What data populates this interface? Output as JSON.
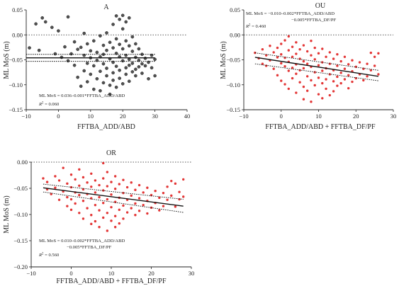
{
  "chart_data": [
    {
      "type": "scatter",
      "title": "A",
      "xlabel": "FFTBA_ADD/ABD",
      "ylabel": "ML MoS (m)",
      "xlim": [
        -10,
        40
      ],
      "ylim": [
        -0.15,
        0.05
      ],
      "xticks": [
        "−10",
        "0",
        "10",
        "20",
        "30",
        "40"
      ],
      "yticks": [
        "0.05",
        "0.00",
        "−0.05",
        "−0.10",
        "−0.15"
      ],
      "equation": [
        "ML MoS = 0.036–0.001*FFTBA_ADD/ABD"
      ],
      "r2_label": "R",
      "r2_value": "= 0.060",
      "point_color": "#333333",
      "reference_line_y": 0.0,
      "fit_line": {
        "x": [
          -10,
          30
        ],
        "y": [
          -0.046,
          -0.046
        ]
      },
      "ci_lines": [
        {
          "x": [
            -10,
            30
          ],
          "y": [
            -0.039,
            -0.039
          ]
        },
        {
          "x": [
            -10,
            30
          ],
          "y": [
            -0.053,
            -0.053
          ]
        }
      ],
      "points": [
        [
          -9,
          -0.026
        ],
        [
          -7,
          0.022
        ],
        [
          -6,
          -0.031
        ],
        [
          -5,
          0.034
        ],
        [
          -4,
          0.026
        ],
        [
          -2,
          0.015
        ],
        [
          -1,
          -0.038
        ],
        [
          0,
          0.008
        ],
        [
          1,
          -0.045
        ],
        [
          2,
          -0.024
        ],
        [
          3,
          -0.052
        ],
        [
          3,
          0.036
        ],
        [
          4,
          -0.038
        ],
        [
          5,
          -0.014
        ],
        [
          5,
          -0.061
        ],
        [
          6,
          -0.029
        ],
        [
          6,
          -0.085
        ],
        [
          7,
          -0.025
        ],
        [
          7,
          -0.103
        ],
        [
          8,
          -0.041
        ],
        [
          8,
          0.003
        ],
        [
          8,
          -0.072
        ],
        [
          9,
          -0.018
        ],
        [
          9,
          -0.057
        ],
        [
          9,
          -0.094
        ],
        [
          10,
          -0.032
        ],
        [
          10,
          -0.046
        ],
        [
          10,
          -0.079
        ],
        [
          11,
          -0.012
        ],
        [
          11,
          -0.062
        ],
        [
          11,
          -0.109
        ],
        [
          12,
          -0.035
        ],
        [
          12,
          -0.051
        ],
        [
          12,
          -0.088
        ],
        [
          13,
          -0.002
        ],
        [
          13,
          -0.044
        ],
        [
          13,
          -0.073
        ],
        [
          13,
          -0.112
        ],
        [
          14,
          -0.021
        ],
        [
          14,
          -0.039
        ],
        [
          14,
          -0.058
        ],
        [
          14,
          -0.096
        ],
        [
          15,
          0.004
        ],
        [
          15,
          -0.031
        ],
        [
          15,
          -0.067
        ],
        [
          15,
          -0.082
        ],
        [
          16,
          -0.015
        ],
        [
          16,
          -0.048
        ],
        [
          16,
          -0.101
        ],
        [
          16,
          -0.119
        ],
        [
          17,
          0.021
        ],
        [
          17,
          -0.026
        ],
        [
          17,
          -0.055
        ],
        [
          17,
          -0.076
        ],
        [
          17,
          -0.091
        ],
        [
          18,
          0.038
        ],
        [
          18,
          -0.008
        ],
        [
          18,
          -0.037
        ],
        [
          18,
          -0.063
        ],
        [
          18,
          -0.105
        ],
        [
          19,
          0.031
        ],
        [
          19,
          -0.019
        ],
        [
          19,
          -0.044
        ],
        [
          19,
          -0.071
        ],
        [
          19,
          -0.087
        ],
        [
          20,
          0.039
        ],
        [
          20,
          0.012
        ],
        [
          20,
          -0.028
        ],
        [
          20,
          -0.052
        ],
        [
          20,
          -0.098
        ],
        [
          21,
          0.026
        ],
        [
          21,
          -0.012
        ],
        [
          21,
          -0.041
        ],
        [
          21,
          -0.066
        ],
        [
          21,
          -0.079
        ],
        [
          22,
          0.034
        ],
        [
          22,
          -0.022
        ],
        [
          22,
          -0.049
        ],
        [
          22,
          -0.061
        ],
        [
          22,
          -0.093
        ],
        [
          23,
          -0.004
        ],
        [
          23,
          -0.033
        ],
        [
          23,
          -0.057
        ],
        [
          23,
          -0.074
        ],
        [
          24,
          -0.018
        ],
        [
          24,
          -0.045
        ],
        [
          24,
          -0.069
        ],
        [
          24,
          -0.082
        ],
        [
          25,
          -0.028
        ],
        [
          25,
          -0.051
        ],
        [
          25,
          -0.064
        ],
        [
          26,
          -0.039
        ],
        [
          26,
          -0.058
        ],
        [
          26,
          -0.077
        ],
        [
          27,
          -0.047
        ],
        [
          27,
          -0.062
        ],
        [
          28,
          -0.055
        ],
        [
          28,
          -0.088
        ],
        [
          29,
          -0.041
        ],
        [
          29,
          -0.066
        ],
        [
          30,
          -0.082
        ],
        [
          30,
          -0.049
        ]
      ]
    },
    {
      "type": "scatter",
      "title": "OU",
      "xlabel": "FFTBA_ADD/ABD + FFTBA_DF/PF",
      "ylabel": "ML MoS (m)",
      "xlim": [
        -10,
        30
      ],
      "ylim": [
        -0.15,
        0.05
      ],
      "xticks": [
        "−10",
        "0",
        "10",
        "20",
        "30"
      ],
      "yticks": [
        "0.05",
        "0.00",
        "−0.05",
        "−0.10",
        "−0.15"
      ],
      "equation": [
        "ML MoS = −0.010–0.002*FFTBA_ADD/ABD",
        "−0.005*FFTBA_DF/PF"
      ],
      "r2_label": "R",
      "r2_value": "= 0.460",
      "point_color": "#e02020",
      "reference_line_y": 0.0,
      "fit_line": {
        "x": [
          -7,
          26
        ],
        "y": [
          -0.045,
          -0.083
        ]
      },
      "ci_lines": [
        {
          "x": [
            -7,
            26
          ],
          "y": [
            -0.036,
            -0.071
          ]
        },
        {
          "x": [
            -7,
            26
          ],
          "y": [
            -0.058,
            -0.092
          ]
        }
      ],
      "points": [
        [
          -7,
          -0.036
        ],
        [
          -6,
          -0.047
        ],
        [
          -5,
          -0.029
        ],
        [
          -5,
          -0.058
        ],
        [
          -4,
          -0.041
        ],
        [
          -4,
          -0.062
        ],
        [
          -3,
          -0.022
        ],
        [
          -3,
          -0.051
        ],
        [
          -2,
          -0.035
        ],
        [
          -2,
          -0.068
        ],
        [
          -1,
          -0.026
        ],
        [
          -1,
          -0.045
        ],
        [
          -1,
          -0.081
        ],
        [
          0,
          -0.018
        ],
        [
          0,
          -0.039
        ],
        [
          0,
          -0.057
        ],
        [
          0,
          -0.092
        ],
        [
          1,
          -0.011
        ],
        [
          1,
          -0.046
        ],
        [
          1,
          -0.063
        ],
        [
          1,
          -0.099
        ],
        [
          2,
          -0.003
        ],
        [
          2,
          -0.031
        ],
        [
          2,
          -0.054
        ],
        [
          2,
          -0.072
        ],
        [
          2,
          -0.108
        ],
        [
          3,
          -0.024
        ],
        [
          3,
          -0.044
        ],
        [
          3,
          -0.066
        ],
        [
          3,
          -0.087
        ],
        [
          4,
          -0.015
        ],
        [
          4,
          -0.038
        ],
        [
          4,
          -0.059
        ],
        [
          4,
          -0.078
        ],
        [
          4,
          -0.116
        ],
        [
          5,
          -0.029
        ],
        [
          5,
          -0.048
        ],
        [
          5,
          -0.071
        ],
        [
          5,
          -0.095
        ],
        [
          6,
          -0.021
        ],
        [
          6,
          -0.053
        ],
        [
          6,
          -0.067
        ],
        [
          6,
          -0.104
        ],
        [
          6,
          -0.129
        ],
        [
          7,
          -0.033
        ],
        [
          7,
          -0.058
        ],
        [
          7,
          -0.083
        ],
        [
          7,
          -0.112
        ],
        [
          8,
          -0.012
        ],
        [
          8,
          -0.041
        ],
        [
          8,
          -0.064
        ],
        [
          8,
          -0.091
        ],
        [
          8,
          -0.134
        ],
        [
          9,
          -0.026
        ],
        [
          9,
          -0.049
        ],
        [
          9,
          -0.075
        ],
        [
          9,
          -0.101
        ],
        [
          10,
          -0.037
        ],
        [
          10,
          -0.061
        ],
        [
          10,
          -0.086
        ],
        [
          10,
          -0.119
        ],
        [
          11,
          -0.028
        ],
        [
          11,
          -0.055
        ],
        [
          11,
          -0.072
        ],
        [
          11,
          -0.097
        ],
        [
          11,
          -0.127
        ],
        [
          12,
          -0.044
        ],
        [
          12,
          -0.067
        ],
        [
          12,
          -0.089
        ],
        [
          12,
          -0.108
        ],
        [
          13,
          -0.035
        ],
        [
          13,
          -0.058
        ],
        [
          13,
          -0.079
        ],
        [
          13,
          -0.121
        ],
        [
          14,
          -0.048
        ],
        [
          14,
          -0.071
        ],
        [
          14,
          -0.093
        ],
        [
          14,
          -0.113
        ],
        [
          15,
          -0.039
        ],
        [
          15,
          -0.062
        ],
        [
          15,
          -0.084
        ],
        [
          15,
          -0.102
        ],
        [
          16,
          -0.053
        ],
        [
          16,
          -0.076
        ],
        [
          16,
          -0.097
        ],
        [
          17,
          -0.044
        ],
        [
          17,
          -0.068
        ],
        [
          17,
          -0.089
        ],
        [
          18,
          -0.059
        ],
        [
          18,
          -0.081
        ],
        [
          18,
          -0.107
        ],
        [
          19,
          -0.051
        ],
        [
          19,
          -0.073
        ],
        [
          19,
          -0.094
        ],
        [
          20,
          -0.064
        ],
        [
          20,
          -0.087
        ],
        [
          21,
          -0.055
        ],
        [
          21,
          -0.079
        ],
        [
          22,
          -0.068
        ],
        [
          22,
          -0.091
        ],
        [
          23,
          -0.058
        ],
        [
          23,
          -0.083
        ],
        [
          24,
          -0.036
        ],
        [
          24,
          -0.071
        ],
        [
          25,
          -0.044
        ],
        [
          25,
          -0.062
        ],
        [
          26,
          -0.037
        ],
        [
          26,
          -0.079
        ]
      ]
    },
    {
      "type": "scatter",
      "title": "OR",
      "xlabel": "FFTBA_ADD/ABD + FFTBA_DF/PF",
      "ylabel": "ML MoS (m)",
      "xlim": [
        -10,
        30
      ],
      "ylim": [
        -0.2,
        0.0
      ],
      "xticks": [
        "−10",
        "0",
        "10",
        "20",
        "30"
      ],
      "yticks": [
        "0.00",
        "−0.05",
        "−0.10",
        "−0.15",
        "−0.20"
      ],
      "equation": [
        "ML MoS = 0.010–0.002*FFTBA_ADD/ABD",
        "−0.005*FFTBA_DF/PF"
      ],
      "r2_label": "R",
      "r2_value": "= 0.560",
      "point_color": "#e02020",
      "reference_line_y": 0.0,
      "fit_line": {
        "x": [
          -7,
          28
        ],
        "y": [
          -0.049,
          -0.084
        ]
      },
      "ci_lines": [
        {
          "x": [
            -7,
            28
          ],
          "y": [
            -0.042,
            -0.071
          ]
        },
        {
          "x": [
            -7,
            28
          ],
          "y": [
            -0.057,
            -0.096
          ]
        }
      ],
      "points": [
        [
          -7,
          -0.031
        ],
        [
          -6,
          -0.052
        ],
        [
          -6,
          -0.038
        ],
        [
          -5,
          -0.061
        ],
        [
          -4,
          -0.027
        ],
        [
          -4,
          -0.049
        ],
        [
          -3,
          -0.072
        ],
        [
          -3,
          -0.035
        ],
        [
          -2,
          -0.011
        ],
        [
          -2,
          -0.056
        ],
        [
          -1,
          -0.041
        ],
        [
          -1,
          -0.067
        ],
        [
          -1,
          -0.084
        ],
        [
          0,
          -0.024
        ],
        [
          0,
          -0.048
        ],
        [
          0,
          -0.071
        ],
        [
          0,
          -0.091
        ],
        [
          1,
          -0.033
        ],
        [
          1,
          -0.058
        ],
        [
          1,
          -0.079
        ],
        [
          2,
          -0.014
        ],
        [
          2,
          -0.045
        ],
        [
          2,
          -0.063
        ],
        [
          2,
          -0.097
        ],
        [
          3,
          -0.029
        ],
        [
          3,
          -0.052
        ],
        [
          3,
          -0.074
        ],
        [
          3,
          -0.108
        ],
        [
          4,
          -0.039
        ],
        [
          4,
          -0.061
        ],
        [
          4,
          -0.088
        ],
        [
          5,
          -0.022
        ],
        [
          5,
          -0.047
        ],
        [
          5,
          -0.069
        ],
        [
          5,
          -0.101
        ],
        [
          5,
          -0.118
        ],
        [
          6,
          -0.035
        ],
        [
          6,
          -0.058
        ],
        [
          6,
          -0.082
        ],
        [
          6,
          -0.113
        ],
        [
          7,
          -0.044
        ],
        [
          7,
          -0.067
        ],
        [
          7,
          -0.092
        ],
        [
          7,
          -0.124
        ],
        [
          8,
          -0.002
        ],
        [
          8,
          -0.031
        ],
        [
          8,
          -0.054
        ],
        [
          8,
          -0.078
        ],
        [
          8,
          -0.106
        ],
        [
          9,
          -0.019
        ],
        [
          9,
          -0.046
        ],
        [
          9,
          -0.071
        ],
        [
          9,
          -0.097
        ],
        [
          9,
          -0.131
        ],
        [
          10,
          -0.038
        ],
        [
          10,
          -0.062
        ],
        [
          10,
          -0.086
        ],
        [
          10,
          -0.112
        ],
        [
          11,
          -0.027
        ],
        [
          11,
          -0.051
        ],
        [
          11,
          -0.076
        ],
        [
          11,
          -0.103
        ],
        [
          11,
          -0.124
        ],
        [
          12,
          -0.042
        ],
        [
          12,
          -0.068
        ],
        [
          12,
          -0.091
        ],
        [
          12,
          -0.117
        ],
        [
          13,
          -0.034
        ],
        [
          13,
          -0.059
        ],
        [
          13,
          -0.083
        ],
        [
          13,
          -0.108
        ],
        [
          14,
          -0.048
        ],
        [
          14,
          -0.072
        ],
        [
          14,
          -0.096
        ],
        [
          15,
          -0.039
        ],
        [
          15,
          -0.064
        ],
        [
          15,
          -0.088
        ],
        [
          16,
          -0.053
        ],
        [
          16,
          -0.079
        ],
        [
          16,
          -0.101
        ],
        [
          17,
          -0.044
        ],
        [
          17,
          -0.069
        ],
        [
          17,
          -0.093
        ],
        [
          18,
          -0.058
        ],
        [
          18,
          -0.082
        ],
        [
          19,
          -0.049
        ],
        [
          19,
          -0.074
        ],
        [
          19,
          -0.098
        ],
        [
          20,
          -0.063
        ],
        [
          20,
          -0.087
        ],
        [
          21,
          -0.055
        ],
        [
          21,
          -0.078
        ],
        [
          22,
          -0.068
        ],
        [
          22,
          -0.092
        ],
        [
          23,
          -0.059
        ],
        [
          23,
          -0.084
        ],
        [
          24,
          -0.047
        ],
        [
          24,
          -0.072
        ],
        [
          25,
          -0.036
        ],
        [
          25,
          -0.064
        ],
        [
          26,
          -0.041
        ],
        [
          26,
          -0.085
        ],
        [
          27,
          -0.057
        ],
        [
          27,
          -0.071
        ],
        [
          28,
          -0.033
        ],
        [
          28,
          -0.066
        ]
      ]
    }
  ]
}
